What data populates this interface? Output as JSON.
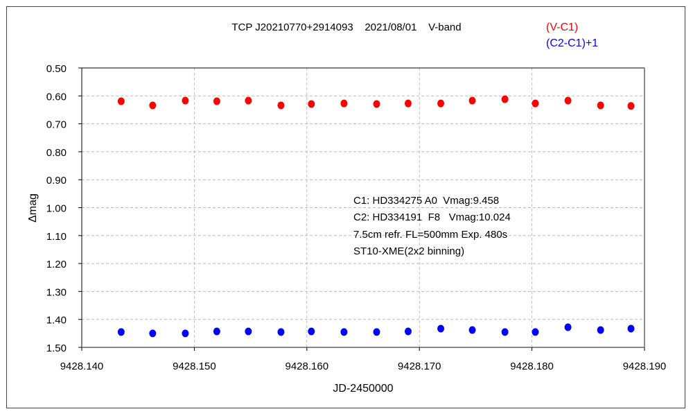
{
  "chart_data": {
    "type": "scatter",
    "title": "TCP J20210770+2914093    2021/08/01    V-band",
    "xlabel": "JD-2450000",
    "ylabel": "Δmag",
    "xlim": [
      9428.14,
      9428.19
    ],
    "ylim": [
      0.5,
      1.5
    ],
    "y_inverted": true,
    "grid": true,
    "xticks": [
      "9428.140",
      "9428.150",
      "9428.160",
      "9428.170",
      "9428.180",
      "9428.190"
    ],
    "yticks": [
      "0.50",
      "0.60",
      "0.70",
      "0.80",
      "0.90",
      "1.00",
      "1.10",
      "1.20",
      "1.30",
      "1.40",
      "1.50"
    ],
    "legend_position": "top-right",
    "x": [
      9428.1435,
      9428.1463,
      9428.1492,
      9428.152,
      9428.1548,
      9428.1577,
      9428.1604,
      9428.1633,
      9428.1662,
      9428.169,
      9428.1719,
      9428.1747,
      9428.1776,
      9428.1803,
      9428.1832,
      9428.1861,
      9428.1888
    ],
    "series": [
      {
        "name": "(V-C1)",
        "color": "#ff0000",
        "values": [
          0.619,
          0.634,
          0.617,
          0.619,
          0.617,
          0.634,
          0.629,
          0.627,
          0.629,
          0.627,
          0.627,
          0.617,
          0.612,
          0.627,
          0.617,
          0.634,
          0.636
        ]
      },
      {
        "name": "(C2-C1)+1",
        "color": "#0000ff",
        "values": [
          1.445,
          1.45,
          1.45,
          1.443,
          1.443,
          1.445,
          1.443,
          1.445,
          1.445,
          1.443,
          1.433,
          1.438,
          1.445,
          1.445,
          1.428,
          1.438,
          1.433
        ]
      }
    ],
    "annotations": [
      "C1: HD334275 A0  Vmag:9.458",
      "C2: HD334191  F8   Vmag:10.024",
      "7.5cm refr. FL=500mm Exp. 480s",
      "ST10-XME(2x2 binning)"
    ]
  }
}
